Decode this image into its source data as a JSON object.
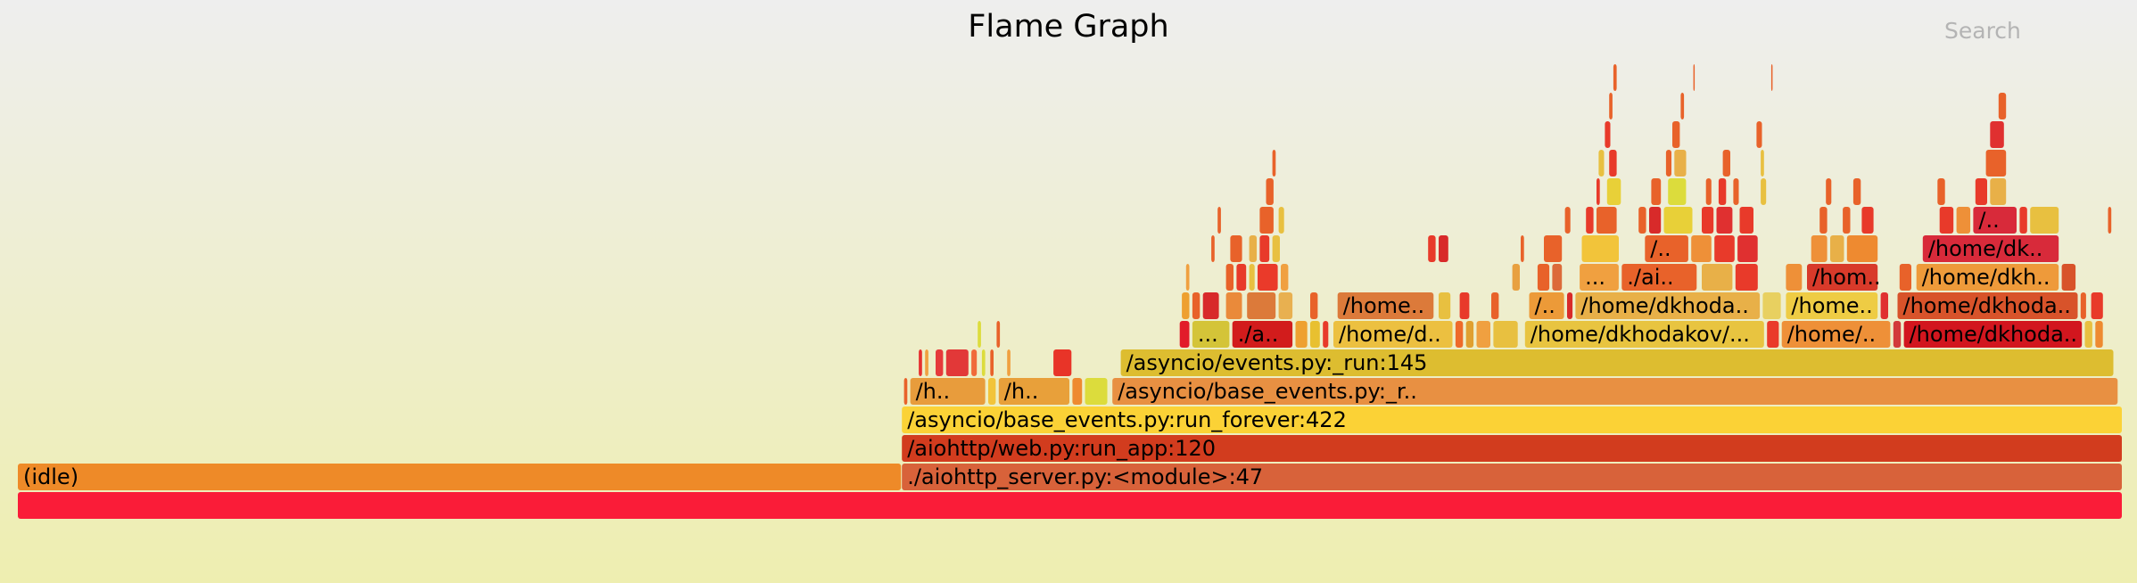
{
  "header": {
    "title": "Flame Graph",
    "search_label": "Search"
  },
  "chart_data": {
    "type": "flamegraph",
    "title": "Flame Graph",
    "x_range": [
      0,
      1000
    ],
    "depth_levels": 16,
    "frames": [
      {
        "label": "",
        "depth": 0,
        "start": 0,
        "end": 1000,
        "color": "#fa1c38"
      },
      {
        "label": "(idle)",
        "depth": 1,
        "start": 0,
        "end": 420,
        "color": "#ee8a28"
      },
      {
        "label": "./aiohttp_server.py:<module>:47",
        "depth": 1,
        "start": 420,
        "end": 1000,
        "color": "#d8623a"
      },
      {
        "label": "/aiohttp/web.py:run_app:120",
        "depth": 2,
        "start": 420,
        "end": 1000,
        "color": "#d23c1e"
      },
      {
        "label": "/asyncio/base_events.py:run_forever:422",
        "depth": 3,
        "start": 420,
        "end": 1000,
        "color": "#fbd236"
      },
      {
        "label": "",
        "depth": 4,
        "start": 421,
        "end": 423,
        "color": "#e8622a"
      },
      {
        "label": "/h..",
        "depth": 4,
        "start": 424,
        "end": 460,
        "color": "#e89c3c"
      },
      {
        "label": "",
        "depth": 4,
        "start": 461,
        "end": 465,
        "color": "#f2c43a"
      },
      {
        "label": "/h..",
        "depth": 4,
        "start": 466,
        "end": 500,
        "color": "#e8a03a"
      },
      {
        "label": "",
        "depth": 4,
        "start": 501,
        "end": 506,
        "color": "#ee8a30"
      },
      {
        "label": "",
        "depth": 4,
        "start": 507,
        "end": 518,
        "color": "#dcdc3c"
      },
      {
        "label": "/asyncio/base_events.py:_r..",
        "depth": 4,
        "start": 520,
        "end": 998,
        "color": "#e89042"
      },
      {
        "label": "",
        "depth": 5,
        "start": 428,
        "end": 430,
        "color": "#e63030"
      },
      {
        "label": "",
        "depth": 5,
        "start": 431,
        "end": 433,
        "color": "#f0a040"
      },
      {
        "label": "",
        "depth": 5,
        "start": 436,
        "end": 440,
        "color": "#e63a3a"
      },
      {
        "label": "",
        "depth": 5,
        "start": 441,
        "end": 452,
        "color": "#e23838"
      },
      {
        "label": "",
        "depth": 5,
        "start": 453,
        "end": 456,
        "color": "#f06a3a"
      },
      {
        "label": "",
        "depth": 5,
        "start": 458,
        "end": 460,
        "color": "#dcdc3c"
      },
      {
        "label": "",
        "depth": 5,
        "start": 462,
        "end": 464,
        "color": "#e8622a"
      },
      {
        "label": "",
        "depth": 5,
        "start": 470,
        "end": 472,
        "color": "#f0a040"
      },
      {
        "label": "",
        "depth": 5,
        "start": 492,
        "end": 501,
        "color": "#e83428"
      },
      {
        "label": "/asyncio/events.py:_run:145",
        "depth": 5,
        "start": 524,
        "end": 996,
        "color": "#ddbd30"
      },
      {
        "label": "",
        "depth": 6,
        "start": 456,
        "end": 458,
        "color": "#dcdc3c"
      },
      {
        "label": "",
        "depth": 6,
        "start": 465,
        "end": 467,
        "color": "#e8622a"
      },
      {
        "label": "",
        "depth": 6,
        "start": 552,
        "end": 557,
        "color": "#e21c2a"
      },
      {
        "label": "...",
        "depth": 6,
        "start": 558,
        "end": 576,
        "color": "#d4c438"
      },
      {
        "label": "./a..",
        "depth": 6,
        "start": 577,
        "end": 606,
        "color": "#d21c1c"
      },
      {
        "label": "",
        "depth": 6,
        "start": 607,
        "end": 613,
        "color": "#eea030"
      },
      {
        "label": "",
        "depth": 6,
        "start": 614,
        "end": 619,
        "color": "#e8c030"
      },
      {
        "label": "",
        "depth": 6,
        "start": 620,
        "end": 623,
        "color": "#e83a2a"
      },
      {
        "label": "/home/d..",
        "depth": 6,
        "start": 625,
        "end": 682,
        "color": "#ecc040"
      },
      {
        "label": "",
        "depth": 6,
        "start": 683,
        "end": 687,
        "color": "#ee6a2a"
      },
      {
        "label": "",
        "depth": 6,
        "start": 688,
        "end": 692,
        "color": "#e0a030"
      },
      {
        "label": "",
        "depth": 6,
        "start": 693,
        "end": 700,
        "color": "#f0a040"
      },
      {
        "label": "",
        "depth": 6,
        "start": 701,
        "end": 713,
        "color": "#e8c040"
      },
      {
        "label": "/home/dkhodakov/...",
        "depth": 6,
        "start": 716,
        "end": 830,
        "color": "#e8c440"
      },
      {
        "label": "",
        "depth": 6,
        "start": 831,
        "end": 837,
        "color": "#ea3a2a"
      },
      {
        "label": "/home/..",
        "depth": 6,
        "start": 838,
        "end": 890,
        "color": "#ee9038"
      },
      {
        "label": "",
        "depth": 6,
        "start": 891,
        "end": 895,
        "color": "#d23a3a"
      },
      {
        "label": "/home/dkhoda..",
        "depth": 6,
        "start": 896,
        "end": 981,
        "color": "#d2161e"
      },
      {
        "label": "",
        "depth": 6,
        "start": 982,
        "end": 986,
        "color": "#e8c040"
      },
      {
        "label": "",
        "depth": 6,
        "start": 987,
        "end": 991,
        "color": "#ee8a30"
      },
      {
        "label": "",
        "depth": 7,
        "start": 553,
        "end": 557,
        "color": "#eea030"
      },
      {
        "label": "",
        "depth": 7,
        "start": 558,
        "end": 562,
        "color": "#e8622a"
      },
      {
        "label": "",
        "depth": 7,
        "start": 563,
        "end": 571,
        "color": "#d82a2a"
      },
      {
        "label": "",
        "depth": 7,
        "start": 574,
        "end": 582,
        "color": "#ea8a3a"
      },
      {
        "label": "",
        "depth": 7,
        "start": 584,
        "end": 598,
        "color": "#dc7a3a"
      },
      {
        "label": "",
        "depth": 7,
        "start": 599,
        "end": 606,
        "color": "#e8b050"
      },
      {
        "label": "",
        "depth": 7,
        "start": 614,
        "end": 618,
        "color": "#e8622a"
      },
      {
        "label": "/home..",
        "depth": 7,
        "start": 627,
        "end": 673,
        "color": "#dc7a3a"
      },
      {
        "label": "",
        "depth": 7,
        "start": 675,
        "end": 681,
        "color": "#e8c040"
      },
      {
        "label": "",
        "depth": 7,
        "start": 685,
        "end": 690,
        "color": "#e83a2a"
      },
      {
        "label": "",
        "depth": 7,
        "start": 700,
        "end": 704,
        "color": "#e8622a"
      },
      {
        "label": "/..",
        "depth": 7,
        "start": 718,
        "end": 735,
        "color": "#ec9a38"
      },
      {
        "label": "",
        "depth": 7,
        "start": 736,
        "end": 739,
        "color": "#d82a2a"
      },
      {
        "label": "/home/dkhoda..",
        "depth": 7,
        "start": 740,
        "end": 828,
        "color": "#e8b048"
      },
      {
        "label": "",
        "depth": 7,
        "start": 829,
        "end": 838,
        "color": "#e8d060"
      },
      {
        "label": "/home..",
        "depth": 7,
        "start": 840,
        "end": 884,
        "color": "#eecc44"
      },
      {
        "label": "",
        "depth": 7,
        "start": 885,
        "end": 889,
        "color": "#e03030"
      },
      {
        "label": "/home/dkhoda..",
        "depth": 7,
        "start": 893,
        "end": 979,
        "color": "#d8532a"
      },
      {
        "label": "",
        "depth": 7,
        "start": 980,
        "end": 983,
        "color": "#e8622a"
      },
      {
        "label": "",
        "depth": 7,
        "start": 985,
        "end": 991,
        "color": "#e83a2a"
      },
      {
        "label": "",
        "depth": 8,
        "start": 555,
        "end": 557,
        "color": "#f0a040"
      },
      {
        "label": "",
        "depth": 8,
        "start": 574,
        "end": 578,
        "color": "#e8622a"
      },
      {
        "label": "",
        "depth": 8,
        "start": 579,
        "end": 584,
        "color": "#e83a2a"
      },
      {
        "label": "",
        "depth": 8,
        "start": 585,
        "end": 588,
        "color": "#e8c040"
      },
      {
        "label": "",
        "depth": 8,
        "start": 589,
        "end": 599,
        "color": "#ea3a2a"
      },
      {
        "label": "",
        "depth": 8,
        "start": 600,
        "end": 604,
        "color": "#f0a040"
      },
      {
        "label": "",
        "depth": 8,
        "start": 710,
        "end": 714,
        "color": "#e8a040"
      },
      {
        "label": "",
        "depth": 8,
        "start": 722,
        "end": 728,
        "color": "#e8622a"
      },
      {
        "label": "",
        "depth": 8,
        "start": 729,
        "end": 734,
        "color": "#dc6a3a"
      },
      {
        "label": "...",
        "depth": 8,
        "start": 742,
        "end": 761,
        "color": "#f0a040"
      },
      {
        "label": "./ai..",
        "depth": 8,
        "start": 762,
        "end": 798,
        "color": "#e8622a"
      },
      {
        "label": "",
        "depth": 8,
        "start": 800,
        "end": 815,
        "color": "#e8b048"
      },
      {
        "label": "",
        "depth": 8,
        "start": 816,
        "end": 827,
        "color": "#e83a2a"
      },
      {
        "label": "",
        "depth": 8,
        "start": 840,
        "end": 848,
        "color": "#ee9038"
      },
      {
        "label": "/hom..",
        "depth": 8,
        "start": 850,
        "end": 884,
        "color": "#d83a2a"
      },
      {
        "label": "",
        "depth": 8,
        "start": 894,
        "end": 900,
        "color": "#e8622a"
      },
      {
        "label": "/home/dkh..",
        "depth": 8,
        "start": 902,
        "end": 970,
        "color": "#ee9a3a"
      },
      {
        "label": "",
        "depth": 8,
        "start": 971,
        "end": 978,
        "color": "#d8532a"
      },
      {
        "label": "",
        "depth": 9,
        "start": 567,
        "end": 569,
        "color": "#e8622a"
      },
      {
        "label": "",
        "depth": 9,
        "start": 576,
        "end": 582,
        "color": "#e8622a"
      },
      {
        "label": "",
        "depth": 9,
        "start": 585,
        "end": 589,
        "color": "#e8b048"
      },
      {
        "label": "",
        "depth": 9,
        "start": 590,
        "end": 595,
        "color": "#e83a2a"
      },
      {
        "label": "",
        "depth": 9,
        "start": 596,
        "end": 600,
        "color": "#e8c040"
      },
      {
        "label": "",
        "depth": 9,
        "start": 670,
        "end": 674,
        "color": "#e83a2a"
      },
      {
        "label": "",
        "depth": 9,
        "start": 675,
        "end": 680,
        "color": "#d82a2a"
      },
      {
        "label": "",
        "depth": 9,
        "start": 714,
        "end": 716,
        "color": "#e8622a"
      },
      {
        "label": "",
        "depth": 9,
        "start": 725,
        "end": 734,
        "color": "#e8622a"
      },
      {
        "label": "",
        "depth": 9,
        "start": 743,
        "end": 761,
        "color": "#f2c43a"
      },
      {
        "label": "/..",
        "depth": 9,
        "start": 773,
        "end": 794,
        "color": "#e8622a"
      },
      {
        "label": "",
        "depth": 9,
        "start": 795,
        "end": 805,
        "color": "#ee9038"
      },
      {
        "label": "",
        "depth": 9,
        "start": 806,
        "end": 816,
        "color": "#e83a2a"
      },
      {
        "label": "",
        "depth": 9,
        "start": 817,
        "end": 827,
        "color": "#e03030"
      },
      {
        "label": "",
        "depth": 9,
        "start": 852,
        "end": 860,
        "color": "#ee9038"
      },
      {
        "label": "",
        "depth": 9,
        "start": 861,
        "end": 868,
        "color": "#e8b048"
      },
      {
        "label": "",
        "depth": 9,
        "start": 869,
        "end": 884,
        "color": "#ee8a30"
      },
      {
        "label": "/home/dk..",
        "depth": 9,
        "start": 905,
        "end": 970,
        "color": "#d82a3a"
      },
      {
        "label": "",
        "depth": 10,
        "start": 570,
        "end": 572,
        "color": "#e8622a"
      },
      {
        "label": "",
        "depth": 10,
        "start": 590,
        "end": 597,
        "color": "#e8622a"
      },
      {
        "label": "",
        "depth": 10,
        "start": 599,
        "end": 602,
        "color": "#e8c040"
      },
      {
        "label": "",
        "depth": 10,
        "start": 735,
        "end": 738,
        "color": "#e8622a"
      },
      {
        "label": "",
        "depth": 10,
        "start": 745,
        "end": 749,
        "color": "#e83a2a"
      },
      {
        "label": "",
        "depth": 10,
        "start": 750,
        "end": 760,
        "color": "#e8622a"
      },
      {
        "label": "",
        "depth": 10,
        "start": 770,
        "end": 774,
        "color": "#e8622a"
      },
      {
        "label": "",
        "depth": 10,
        "start": 775,
        "end": 781,
        "color": "#d82a2a"
      },
      {
        "label": "",
        "depth": 10,
        "start": 782,
        "end": 796,
        "color": "#e8d038"
      },
      {
        "label": "",
        "depth": 10,
        "start": 800,
        "end": 806,
        "color": "#e83a2a"
      },
      {
        "label": "",
        "depth": 10,
        "start": 807,
        "end": 815,
        "color": "#e03030"
      },
      {
        "label": "",
        "depth": 10,
        "start": 818,
        "end": 825,
        "color": "#e83a2a"
      },
      {
        "label": "",
        "depth": 10,
        "start": 856,
        "end": 860,
        "color": "#e8622a"
      },
      {
        "label": "",
        "depth": 10,
        "start": 867,
        "end": 871,
        "color": "#e8622a"
      },
      {
        "label": "",
        "depth": 10,
        "start": 876,
        "end": 882,
        "color": "#e83a2a"
      },
      {
        "label": "",
        "depth": 10,
        "start": 913,
        "end": 920,
        "color": "#e83a2a"
      },
      {
        "label": "",
        "depth": 10,
        "start": 921,
        "end": 928,
        "color": "#ee9038"
      },
      {
        "label": "/..",
        "depth": 10,
        "start": 929,
        "end": 950,
        "color": "#d82a3a"
      },
      {
        "label": "",
        "depth": 10,
        "start": 951,
        "end": 955,
        "color": "#e83a2a"
      },
      {
        "label": "",
        "depth": 10,
        "start": 956,
        "end": 970,
        "color": "#e8c040"
      },
      {
        "label": "",
        "depth": 10,
        "start": 993,
        "end": 995,
        "color": "#e8622a"
      },
      {
        "label": "",
        "depth": 11,
        "start": 593,
        "end": 597,
        "color": "#e8622a"
      },
      {
        "label": "",
        "depth": 11,
        "start": 750,
        "end": 752,
        "color": "#e83a2a"
      },
      {
        "label": "",
        "depth": 11,
        "start": 755,
        "end": 762,
        "color": "#e8d038"
      },
      {
        "label": "",
        "depth": 11,
        "start": 776,
        "end": 781,
        "color": "#e8622a"
      },
      {
        "label": "",
        "depth": 11,
        "start": 784,
        "end": 793,
        "color": "#dcdc3c"
      },
      {
        "label": "",
        "depth": 11,
        "start": 802,
        "end": 805,
        "color": "#e8622a"
      },
      {
        "label": "",
        "depth": 11,
        "start": 808,
        "end": 812,
        "color": "#e83a2a"
      },
      {
        "label": "",
        "depth": 11,
        "start": 815,
        "end": 818,
        "color": "#e8622a"
      },
      {
        "label": "",
        "depth": 11,
        "start": 828,
        "end": 831,
        "color": "#e8c040"
      },
      {
        "label": "",
        "depth": 11,
        "start": 859,
        "end": 862,
        "color": "#e8622a"
      },
      {
        "label": "",
        "depth": 11,
        "start": 872,
        "end": 876,
        "color": "#e8622a"
      },
      {
        "label": "",
        "depth": 11,
        "start": 912,
        "end": 916,
        "color": "#e8622a"
      },
      {
        "label": "",
        "depth": 11,
        "start": 930,
        "end": 936,
        "color": "#e83a2a"
      },
      {
        "label": "",
        "depth": 11,
        "start": 937,
        "end": 945,
        "color": "#e8b048"
      },
      {
        "label": "",
        "depth": 12,
        "start": 596,
        "end": 598,
        "color": "#e8622a"
      },
      {
        "label": "",
        "depth": 12,
        "start": 751,
        "end": 754,
        "color": "#e8c040"
      },
      {
        "label": "",
        "depth": 12,
        "start": 756,
        "end": 760,
        "color": "#e83a2a"
      },
      {
        "label": "",
        "depth": 12,
        "start": 783,
        "end": 786,
        "color": "#e8622a"
      },
      {
        "label": "",
        "depth": 12,
        "start": 787,
        "end": 793,
        "color": "#e8b048"
      },
      {
        "label": "",
        "depth": 12,
        "start": 810,
        "end": 814,
        "color": "#e8622a"
      },
      {
        "label": "",
        "depth": 12,
        "start": 828,
        "end": 830,
        "color": "#e8c040"
      },
      {
        "label": "",
        "depth": 12,
        "start": 935,
        "end": 945,
        "color": "#e8622a"
      },
      {
        "label": "",
        "depth": 13,
        "start": 754,
        "end": 757,
        "color": "#e83a2a"
      },
      {
        "label": "",
        "depth": 13,
        "start": 786,
        "end": 790,
        "color": "#e8622a"
      },
      {
        "label": "",
        "depth": 13,
        "start": 826,
        "end": 829,
        "color": "#e8622a"
      },
      {
        "label": "",
        "depth": 13,
        "start": 937,
        "end": 944,
        "color": "#e03030"
      },
      {
        "label": "",
        "depth": 14,
        "start": 756,
        "end": 758,
        "color": "#e8622a"
      },
      {
        "label": "",
        "depth": 14,
        "start": 790,
        "end": 792,
        "color": "#e8622a"
      },
      {
        "label": "",
        "depth": 14,
        "start": 941,
        "end": 945,
        "color": "#e8622a"
      },
      {
        "label": "",
        "depth": 15,
        "start": 758,
        "end": 760,
        "color": "#e8622a"
      },
      {
        "label": "",
        "depth": 15,
        "start": 796,
        "end": 797,
        "color": "#e8622a"
      },
      {
        "label": "",
        "depth": 15,
        "start": 833,
        "end": 834,
        "color": "#e8622a"
      }
    ]
  }
}
